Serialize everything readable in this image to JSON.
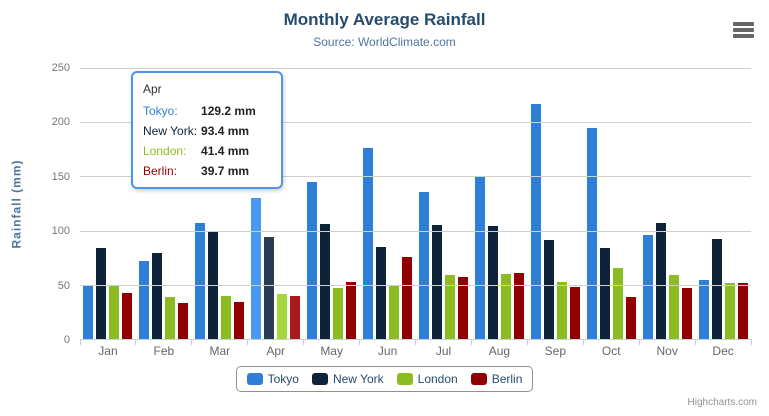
{
  "header": {
    "title": "Monthly Average Rainfall",
    "subtitle": "Source: WorldClimate.com"
  },
  "export_menu": {
    "icon": "hamburger-icon"
  },
  "chart_data": {
    "type": "bar",
    "title": "Monthly Average Rainfall",
    "subtitle": "Source: WorldClimate.com",
    "categories": [
      "Jan",
      "Feb",
      "Mar",
      "Apr",
      "May",
      "Jun",
      "Jul",
      "Aug",
      "Sep",
      "Oct",
      "Nov",
      "Dec"
    ],
    "series": [
      {
        "name": "Tokyo",
        "color": "#2f7ed8",
        "hover_color": "#4998f2",
        "values": [
          49.9,
          71.5,
          106.4,
          129.2,
          144.0,
          176.0,
          135.6,
          148.5,
          216.4,
          194.1,
          95.6,
          54.4
        ]
      },
      {
        "name": "New York",
        "color": "#0d233a",
        "hover_color": "#273d54",
        "values": [
          83.6,
          78.8,
          98.5,
          93.4,
          106.0,
          84.5,
          105.0,
          104.3,
          91.2,
          83.5,
          106.6,
          92.3
        ]
      },
      {
        "name": "London",
        "color": "#8bbc21",
        "hover_color": "#a5d63b",
        "values": [
          48.9,
          38.8,
          39.3,
          41.4,
          47.0,
          48.3,
          59.0,
          59.6,
          52.4,
          65.2,
          59.3,
          51.2
        ]
      },
      {
        "name": "Berlin",
        "color": "#910000",
        "hover_color": "#ab1a1a",
        "values": [
          42.4,
          33.2,
          34.5,
          39.7,
          52.6,
          75.5,
          57.4,
          60.4,
          47.6,
          39.1,
          46.8,
          51.1
        ]
      }
    ],
    "xlabel": "",
    "ylabel": "Rainfall (mm)",
    "unit": "mm",
    "yticks": [
      0,
      50,
      100,
      150,
      200,
      250
    ],
    "ylim": [
      0,
      250
    ],
    "grid": true,
    "legend_position": "bottom",
    "hovered_category": "Apr"
  },
  "tooltip": {
    "header": "Apr",
    "rows": [
      {
        "label": "Tokyo:",
        "value": "129.2 mm",
        "color": "#2f7ed8"
      },
      {
        "label": "New York:",
        "value": "93.4 mm",
        "color": "#0d233a"
      },
      {
        "label": "London:",
        "value": "41.4 mm",
        "color": "#8bbc21"
      },
      {
        "label": "Berlin:",
        "value": "39.7 mm",
        "color": "#910000"
      }
    ]
  },
  "credits": "Highcharts.com",
  "colors": {
    "title": "#274b6d",
    "subtitle": "#4d759e",
    "axis_labels": "#777777",
    "gridline": "#cfcfcf",
    "axis_line": "#c0d0e0",
    "legend_border": "#909090",
    "tooltip_border": "#4c96e8"
  }
}
